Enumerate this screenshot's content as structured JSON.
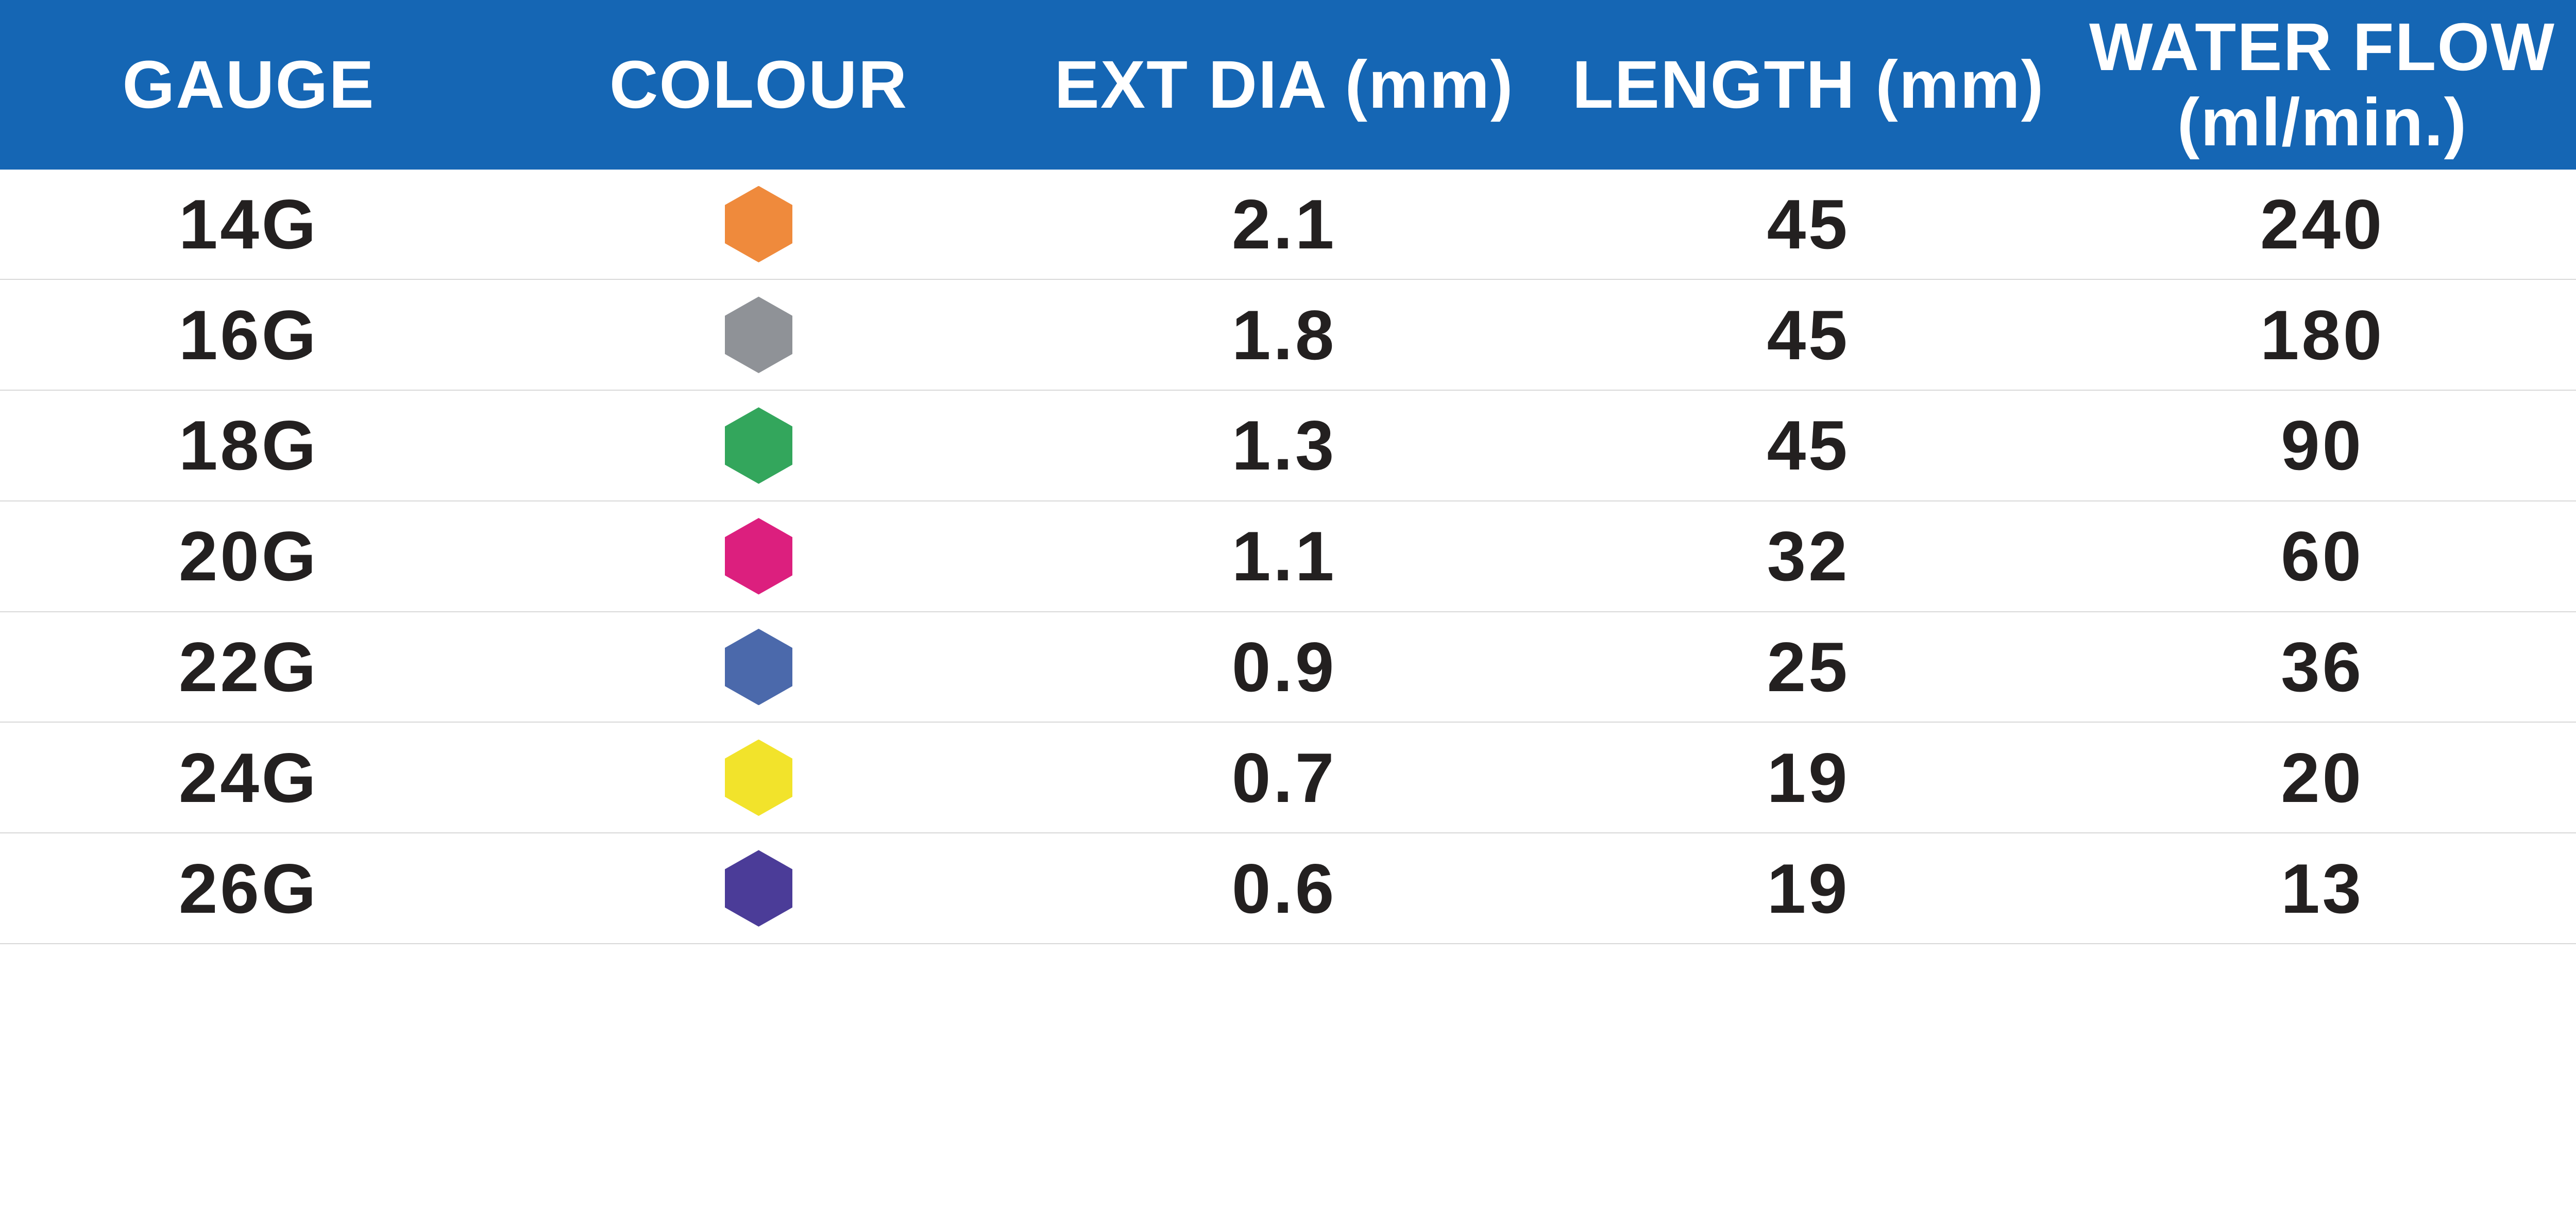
{
  "colors": {
    "header_bg": "#1566B4",
    "header_text": "#FFFFFF",
    "row_text": "#232020",
    "divider": "#D8D8D8",
    "background": "#FFFFFF"
  },
  "table": {
    "columns": [
      {
        "label": "GAUGE"
      },
      {
        "label": "COLOUR"
      },
      {
        "label": "EXT DIA (mm)"
      },
      {
        "label": "LENGTH (mm)"
      },
      {
        "label": "WATER FLOW",
        "label2": "(ml/min.)"
      }
    ],
    "rows": [
      {
        "gauge": "14G",
        "colour_name": "orange",
        "colour_hex": "#EF8A3C",
        "ext_dia": "2.1",
        "length": "45",
        "water_flow": "240"
      },
      {
        "gauge": "16G",
        "colour_name": "grey",
        "colour_hex": "#8F9297",
        "ext_dia": "1.8",
        "length": "45",
        "water_flow": "180"
      },
      {
        "gauge": "18G",
        "colour_name": "green",
        "colour_hex": "#33A65C",
        "ext_dia": "1.3",
        "length": "45",
        "water_flow": "90"
      },
      {
        "gauge": "20G",
        "colour_name": "magenta",
        "colour_hex": "#DC1F7E",
        "ext_dia": "1.1",
        "length": "32",
        "water_flow": "60"
      },
      {
        "gauge": "22G",
        "colour_name": "blue",
        "colour_hex": "#4B69AB",
        "ext_dia": "0.9",
        "length": "25",
        "water_flow": "36"
      },
      {
        "gauge": "24G",
        "colour_name": "yellow",
        "colour_hex": "#F2E32B",
        "ext_dia": "0.7",
        "length": "19",
        "water_flow": "20"
      },
      {
        "gauge": "26G",
        "colour_name": "violet",
        "colour_hex": "#4B3C98",
        "ext_dia": "0.6",
        "length": "19",
        "water_flow": "13"
      }
    ]
  }
}
